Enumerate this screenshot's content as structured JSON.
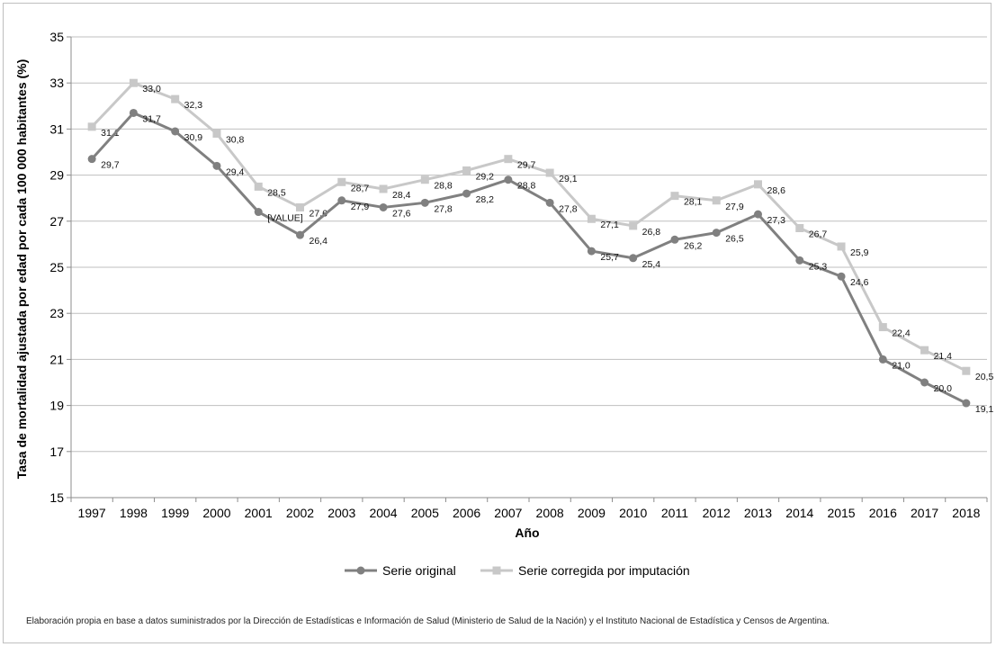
{
  "chart_data": {
    "type": "line",
    "xlabel": "Año",
    "ylabel": "Tasa de mortalidad ajustada por edad por cada 100 000 habitantes (%)",
    "ylim": [
      15,
      35
    ],
    "yticks": [
      15,
      17,
      19,
      21,
      23,
      25,
      27,
      29,
      31,
      33,
      35
    ],
    "grid": true,
    "legend": "bottom-center",
    "categories": [
      "1997",
      "1998",
      "1999",
      "2000",
      "2001",
      "2002",
      "2003",
      "2004",
      "2005",
      "2006",
      "2007",
      "2008",
      "2009",
      "2010",
      "2011",
      "2012",
      "2013",
      "2014",
      "2015",
      "2016",
      "2017",
      "2018"
    ],
    "series": [
      {
        "name": "Serie original",
        "color": "#808080",
        "marker": "circle",
        "values": [
          29.7,
          31.7,
          30.9,
          29.4,
          27.4,
          26.4,
          27.9,
          27.6,
          27.8,
          28.2,
          28.8,
          27.8,
          25.7,
          25.4,
          26.2,
          26.5,
          27.3,
          25.3,
          24.6,
          21.0,
          20.0,
          19.1
        ],
        "labels": [
          "29,7",
          "31,7",
          "30,9",
          "29,4",
          "[VALUE]",
          "26,4",
          "27,9",
          "27,6",
          "27,8",
          "28,2",
          "28,8",
          "27,8",
          "25,7",
          "25,4",
          "26,2",
          "26,5",
          "27,3",
          "25,3",
          "24,6",
          "21,0",
          "20,0",
          "19,1"
        ]
      },
      {
        "name": "Serie corregida por imputación",
        "color": "#c8c8c8",
        "marker": "square",
        "values": [
          31.1,
          33.0,
          32.3,
          30.8,
          28.5,
          27.6,
          28.7,
          28.4,
          28.8,
          29.2,
          29.7,
          29.1,
          27.1,
          26.8,
          28.1,
          27.9,
          28.6,
          26.7,
          25.9,
          22.4,
          21.4,
          20.5
        ],
        "labels": [
          "31,1",
          "33,0",
          "32,3",
          "30,8",
          "28,5",
          "27,6",
          "28,7",
          "28,4",
          "28,8",
          "29,2",
          "29,7",
          "29,1",
          "27,1",
          "26,8",
          "28,1",
          "27,9",
          "28,6",
          "26,7",
          "25,9",
          "22,4",
          "21,4",
          "20,5"
        ]
      }
    ]
  },
  "source_note": "Elaboración propia en base a datos suministrados por la Dirección de Estadísticas e Información de Salud (Ministerio de Salud de la Nación) y el Instituto Nacional de Estadística y Censos de Argentina."
}
